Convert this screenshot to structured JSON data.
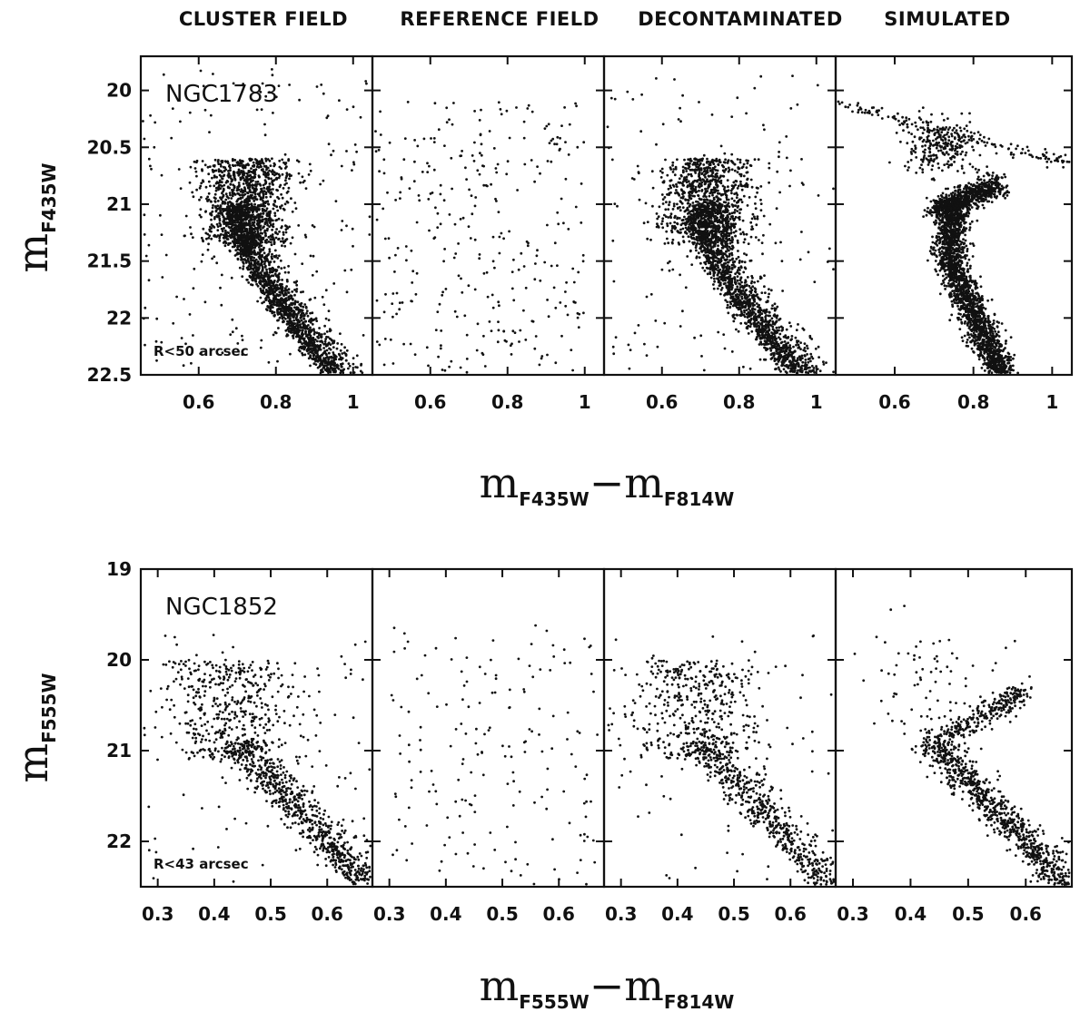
{
  "column_titles": [
    "CLUSTER FIELD",
    "REFERENCE FIELD",
    "DECONTAMINATED",
    "SIMULATED"
  ],
  "rows": [
    {
      "cluster": "NGC1783",
      "radius_label": "R<50 arcsec",
      "x_axis": {
        "main": "m",
        "sub1": "F435W",
        "minus": "−",
        "main2": "m",
        "sub2": "F814W"
      },
      "y_axis": {
        "main": "m",
        "sub": "F435W"
      }
    },
    {
      "cluster": "NGC1852",
      "radius_label": "R<43 arcsec",
      "x_axis": {
        "main": "m",
        "sub1": "F555W",
        "minus": "−",
        "main2": "m",
        "sub2": "F814W"
      },
      "y_axis": {
        "main": "m",
        "sub": "F555W"
      }
    }
  ],
  "chart_data": [
    {
      "type": "scatter",
      "title": "NGC1783",
      "columns": [
        "CLUSTER FIELD",
        "REFERENCE FIELD",
        "DECONTAMINATED",
        "SIMULATED"
      ],
      "xlabel": "mF435W − mF814W",
      "ylabel": "mF435W",
      "xlim": [
        0.45,
        1.05
      ],
      "ylim": [
        22.5,
        19.7
      ],
      "y_inverted": true,
      "xticks": [
        0.6,
        0.8,
        1
      ],
      "xtick_labels": [
        "0.6",
        "0.8",
        "1"
      ],
      "yticks": [
        20,
        20.5,
        21,
        21.5,
        22,
        22.5
      ],
      "ytick_labels": [
        "20",
        "20.5",
        "21",
        "21.5",
        "22",
        "22.5"
      ],
      "panel_densities": [
        3000,
        320,
        2700,
        3200
      ],
      "features": {
        "main_sequence_turnoff_color": 0.7,
        "main_sequence_turnoff_mag": 21.3,
        "main_sequence_lower_end": [
          0.92,
          22.45
        ],
        "subgiant_branch_end": [
          0.85,
          20.85
        ],
        "simulated_red_clump_line": [
          [
            0.45,
            20.1
          ],
          [
            1.05,
            20.65
          ]
        ]
      }
    },
    {
      "type": "scatter",
      "title": "NGC1852",
      "columns": [
        "CLUSTER FIELD",
        "REFERENCE FIELD",
        "DECONTAMINATED",
        "SIMULATED"
      ],
      "xlabel": "mF555W − mF814W",
      "ylabel": "mF555W",
      "xlim": [
        0.27,
        0.68
      ],
      "ylim": [
        22.5,
        19
      ],
      "y_inverted": true,
      "xticks": [
        0.3,
        0.4,
        0.5,
        0.6
      ],
      "xtick_labels": [
        "0.3",
        "0.4",
        "0.5",
        "0.6"
      ],
      "yticks": [
        19,
        20,
        21,
        22
      ],
      "ytick_labels": [
        "19",
        "20",
        "21",
        "22"
      ],
      "panel_densities": [
        1300,
        180,
        1100,
        1200
      ],
      "features": {
        "main_sequence_turnoff_color": 0.45,
        "main_sequence_turnoff_mag": 21.0,
        "main_sequence_lower_end": [
          0.64,
          22.4
        ],
        "subgiant_branch_end": [
          0.6,
          20.35
        ]
      }
    }
  ]
}
